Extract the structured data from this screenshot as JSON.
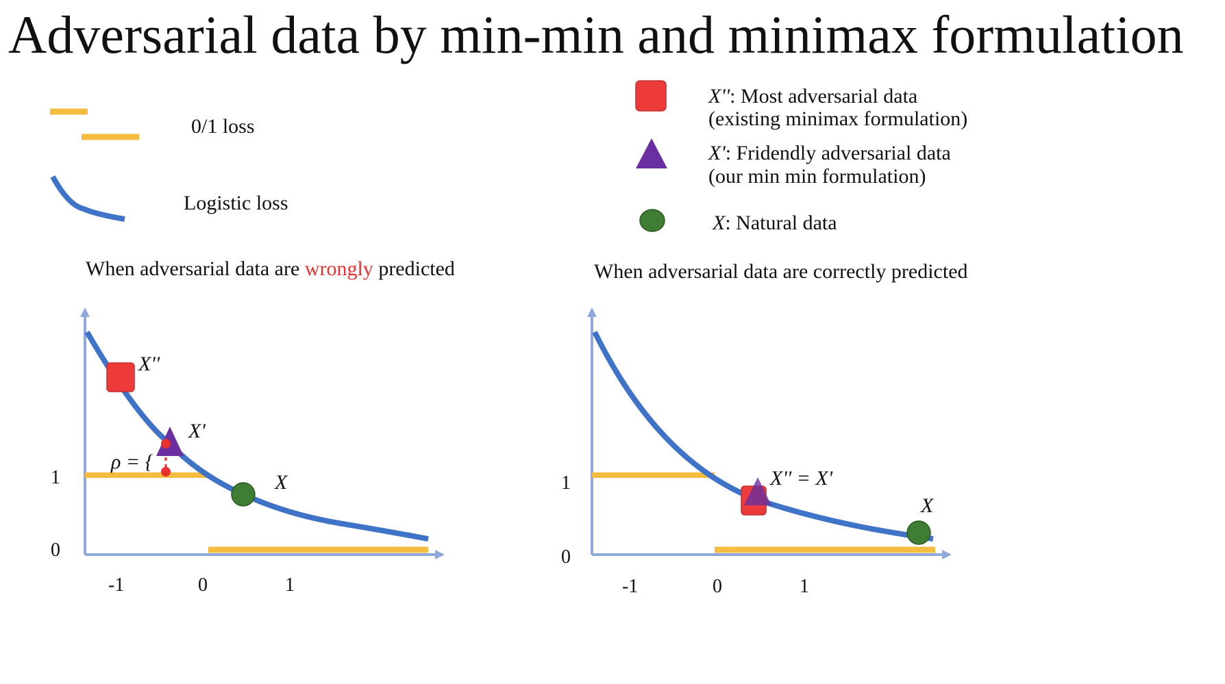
{
  "title": "Adversarial data by min-min and minimax formulation",
  "legend_left": {
    "zero_one_loss": "0/1 loss",
    "logistic_loss": "Logistic loss"
  },
  "legend_right": {
    "most_adversarial": {
      "symbol": "X''",
      "line1": ": Most adversarial data",
      "line2": "(existing minimax formulation)"
    },
    "friendly": {
      "symbol": "X'",
      "line1": ": Fridendly adversarial data",
      "line2": "(our min min formulation)"
    },
    "natural": {
      "symbol": "X",
      "line1": ": Natural data"
    }
  },
  "colors": {
    "zero_one_loss": "#f4bd3f",
    "logistic_loss": "#3f73c8",
    "axis": "#8fa9dc",
    "square": "#ec3b3a",
    "triangle": "#6a2fa0",
    "circle": "#3e7d33",
    "highlight": "#e8312f"
  },
  "left_panel": {
    "caption_before": "When adversarial data are ",
    "caption_highlight": "wrongly",
    "caption_after": " predicted",
    "y_ticks": [
      "1",
      "0"
    ],
    "x_ticks": [
      "-1",
      "0",
      "1"
    ],
    "labels": {
      "square": "X''",
      "triangle": "X'",
      "circle": "X",
      "rho": "ρ = {"
    }
  },
  "right_panel": {
    "caption": "When adversarial data are correctly predicted",
    "y_ticks": [
      "1",
      "0"
    ],
    "x_ticks": [
      "-1",
      "0",
      "1"
    ],
    "labels": {
      "combined": "X'' = X'",
      "circle": "X"
    }
  }
}
